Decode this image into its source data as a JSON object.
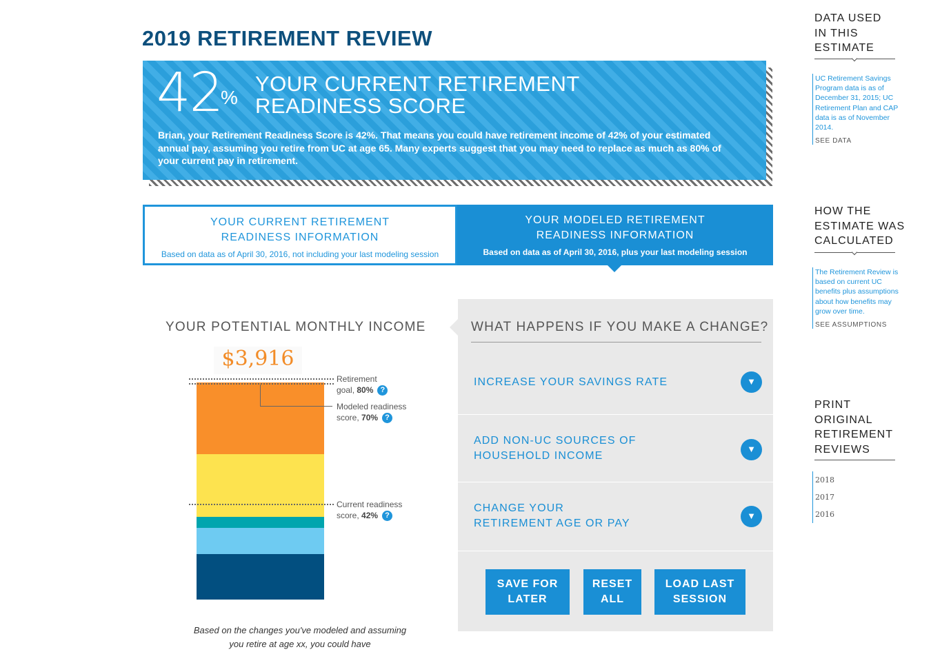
{
  "page": {
    "title": "2019 RETIREMENT REVIEW"
  },
  "score": {
    "value": "42",
    "unit": "%",
    "heading_line1": "YOUR CURRENT RETIREMENT",
    "heading_line2": "READINESS SCORE",
    "description": "Brian, your Retirement Readiness Score is 42%. That means you could have retirement income of 42% of your estimated annual pay, assuming you retire from UC at age 65. Many experts suggest that you may need to replace as much as 80% of your current pay in retirement."
  },
  "tabs": [
    {
      "title_line1": "YOUR CURRENT RETIREMENT",
      "title_line2": "READINESS INFORMATION",
      "subtitle": "Based on data as of April 30, 2016, not including your last modeling session",
      "active": false
    },
    {
      "title_line1": "YOUR MODELED RETIREMENT",
      "title_line2": "READINESS INFORMATION",
      "subtitle": "Based on data as of April 30, 2016, plus your last modeling session",
      "active": true
    }
  ],
  "income": {
    "title": "YOUR POTENTIAL MONTHLY INCOME",
    "amount": "$3,916",
    "colors": {
      "navy": "#024f80",
      "light_blue": "#6ecbf2",
      "teal": "#00a5ae",
      "yellow": "#fde34f",
      "orange": "#f98f2a"
    },
    "segments_percent_of_bar": [
      {
        "color": "#024f80",
        "share": 0.21
      },
      {
        "color": "#6ecbf2",
        "share": 0.12
      },
      {
        "color": "#00a5ae",
        "share": 0.05
      },
      {
        "color": "#fde34f",
        "share": 0.29
      },
      {
        "color": "#f98f2a",
        "share": 0.33
      }
    ],
    "callouts": {
      "goal": {
        "line1": "Retirement",
        "line2_prefix": "goal, ",
        "line2_value": "80%",
        "help": "?"
      },
      "modeled": {
        "line1": "Modeled readiness",
        "line2_prefix": "score, ",
        "line2_value": "70%",
        "help": "?"
      },
      "current": {
        "line1": "Current readiness",
        "line2_prefix": "score, ",
        "line2_value": "42%",
        "help": "?"
      }
    },
    "note": "Based on the changes you've modeled and assuming you retire at age xx, you could have"
  },
  "changes": {
    "title": "WHAT HAPPENS IF YOU MAKE A CHANGE?",
    "items": [
      {
        "line1": "INCREASE YOUR SAVINGS RATE",
        "line2": ""
      },
      {
        "line1": "ADD NON-UC SOURCES OF",
        "line2": "HOUSEHOLD INCOME"
      },
      {
        "line1": "CHANGE YOUR",
        "line2": "RETIREMENT AGE OR PAY"
      }
    ],
    "chevron_icon": "chevron-down-icon",
    "buttons": {
      "save": {
        "line1": "SAVE FOR",
        "line2": "LATER"
      },
      "reset": {
        "line1": "RESET",
        "line2": "ALL"
      },
      "load": {
        "line1": "LOAD LAST",
        "line2": "SESSION"
      }
    }
  },
  "sidebar": {
    "data_used": {
      "heading": [
        "DATA USED",
        "IN THIS",
        "ESTIMATE"
      ],
      "text": "UC Retirement Savings Program data is as of December 31, 2015; UC Retirement Plan and CAP data is as of November 2014.",
      "link": "SEE DATA"
    },
    "how_calculated": {
      "heading": [
        "HOW THE",
        "ESTIMATE WAS",
        "CALCULATED"
      ],
      "text": "The Retirement Review is based on current UC benefits plus assumptions about how benefits may grow over time.",
      "link": "SEE ASSUMPTIONS"
    },
    "print": {
      "heading": [
        "PRINT",
        "ORIGINAL",
        "RETIREMENT",
        "REVIEWS"
      ],
      "years": [
        "2018",
        "2017",
        "2016"
      ]
    }
  }
}
